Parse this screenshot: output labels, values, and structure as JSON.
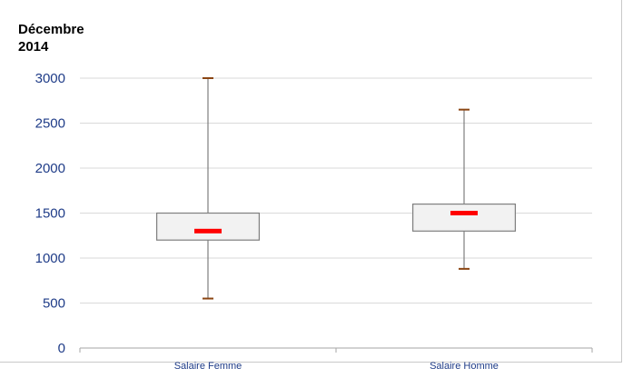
{
  "chart_data": {
    "type": "boxplot",
    "title_line1": "Décembre",
    "title_line2": "2014",
    "categories": [
      "Salaire Femme",
      "Salaire Homme"
    ],
    "boxes": [
      {
        "category": "Salaire Femme",
        "min": 550,
        "q1": 1200,
        "median": 1300,
        "q3": 1500,
        "max": 3000
      },
      {
        "category": "Salaire Homme",
        "min": 880,
        "q1": 1300,
        "median": 1500,
        "q3": 1600,
        "max": 2650
      }
    ],
    "yticks": [
      "0",
      "500",
      "1000",
      "1500",
      "2000",
      "2500",
      "3000"
    ],
    "ylim": [
      0,
      3000
    ],
    "grid": true,
    "colors": {
      "box_fill": "#f2f2f2",
      "box_stroke": "#7f7f7f",
      "median": "#ff0000",
      "whisker_cap": "#8b4513",
      "grid": "#d9d9d9",
      "tick_text": "#1f3c88"
    }
  }
}
